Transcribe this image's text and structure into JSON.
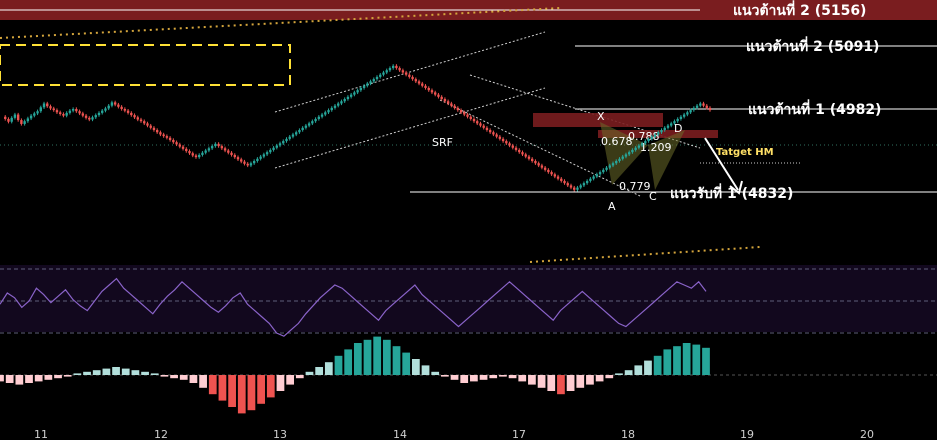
{
  "chart_data": {
    "type": "candlestick",
    "resistance_levels": [
      {
        "label": "แนวต้านที่ 2 (5156)",
        "value": 5156
      },
      {
        "label": "แนวต้านที่ 2 (5091)",
        "value": 5091
      },
      {
        "label": "แนวต้านที่ 1 (4982)",
        "value": 4982
      }
    ],
    "support_levels": [
      {
        "label": "แนวรับที่ 1 (4832)",
        "value": 4832
      }
    ],
    "annotations": {
      "channel": "SRF",
      "target": "Tatget HM",
      "pattern_points": [
        "X",
        "A",
        "C",
        "D"
      ],
      "ratios": [
        "0.678",
        "0.788",
        "1.209",
        "0.779"
      ]
    },
    "x_tick_labels": [
      "11",
      "12",
      "13",
      "14",
      "17",
      "18",
      "19",
      "20"
    ],
    "price_series": [
      4968,
      4964,
      4959,
      4966,
      4972,
      4962,
      4955,
      4960,
      4965,
      4970,
      4974,
      4978,
      4985,
      4992,
      4987,
      4983,
      4980,
      4976,
      4973,
      4970,
      4975,
      4979,
      4982,
      4978,
      4974,
      4970,
      4966,
      4963,
      4967,
      4971,
      4975,
      4979,
      4983,
      4988,
      4994,
      4990,
      4986,
      4982,
      4979,
      4975,
      4971,
      4967,
      4963,
      4960,
      4956,
      4952,
      4948,
      4944,
      4940,
      4936,
      4933,
      4930,
      4926,
      4922,
      4918,
      4914,
      4910,
      4906,
      4902,
      4898,
      4895,
      4899,
      4903,
      4907,
      4911,
      4915,
      4919,
      4915,
      4911,
      4907,
      4903,
      4899,
      4895,
      4891,
      4887,
      4883,
      4880,
      4884,
      4888,
      4892,
      4896,
      4900,
      4904,
      4908,
      4912,
      4916,
      4920,
      4924,
      4928,
      4932,
      4936,
      4940,
      4944,
      4948,
      4952,
      4956,
      4960,
      4964,
      4968,
      4972,
      4976,
      4980,
      4984,
      4988,
      4992,
      4996,
      5000,
      5004,
      5008,
      5012,
      5016,
      5020,
      5024,
      5028,
      5032,
      5036,
      5040,
      5044,
      5048,
      5052,
      5056,
      5060,
      5056,
      5052,
      5048,
      5044,
      5040,
      5036,
      5032,
      5028,
      5024,
      5020,
      5016,
      5012,
      5008,
      5004,
      5000,
      4996,
      4992,
      4988,
      4984,
      4980,
      4976,
      4972,
      4968,
      4964,
      4960,
      4956,
      4952,
      4948,
      4944,
      4940,
      4936,
      4932,
      4928,
      4924,
      4920,
      4916,
      4912,
      4908,
      4904,
      4900,
      4896,
      4892,
      4888,
      4884,
      4880,
      4876,
      4872,
      4868,
      4864,
      4860,
      4856,
      4852,
      4848,
      4844,
      4840,
      4836,
      4840,
      4844,
      4848,
      4852,
      4856,
      4860,
      4864,
      4868,
      4872,
      4876,
      4880,
      4884,
      4888,
      4892,
      4896,
      4900,
      4904,
      4908,
      4912,
      4916,
      4920,
      4924,
      4928,
      4932,
      4936,
      4940,
      4944,
      4948,
      4952,
      4956,
      4960,
      4964,
      4968,
      4972,
      4976,
      4980,
      4984,
      4988,
      4992,
      4988,
      4984,
      4980
    ],
    "rsi_series": [
      48,
      55,
      52,
      46,
      50,
      58,
      54,
      49,
      53,
      57,
      51,
      47,
      44,
      50,
      56,
      60,
      64,
      58,
      54,
      50,
      46,
      42,
      48,
      53,
      57,
      62,
      58,
      54,
      50,
      46,
      43,
      47,
      52,
      55,
      48,
      44,
      40,
      36,
      30,
      28,
      32,
      36,
      42,
      47,
      52,
      56,
      60,
      58,
      54,
      50,
      46,
      42,
      38,
      44,
      48,
      52,
      56,
      60,
      54,
      50,
      46,
      42,
      38,
      34,
      38,
      42,
      46,
      50,
      54,
      58,
      62,
      58,
      54,
      50,
      46,
      42,
      38,
      44,
      48,
      52,
      56,
      52,
      48,
      44,
      40,
      36,
      34,
      38,
      42,
      46,
      50,
      54,
      58,
      62,
      60,
      58,
      62,
      56
    ],
    "macd_hist": [
      -4,
      -5,
      -6,
      -5,
      -4,
      -3,
      -2,
      -1,
      1,
      2,
      3,
      4,
      5,
      4,
      3,
      2,
      1,
      -1,
      -2,
      -3,
      -5,
      -8,
      -12,
      -16,
      -20,
      -24,
      -22,
      -18,
      -14,
      -10,
      -6,
      -2,
      2,
      5,
      8,
      12,
      16,
      20,
      22,
      24,
      22,
      18,
      14,
      10,
      6,
      2,
      -1,
      -3,
      -5,
      -4,
      -3,
      -2,
      -1,
      -2,
      -4,
      -6,
      -8,
      -10,
      -12,
      -10,
      -8,
      -6,
      -4,
      -2,
      1,
      3,
      6,
      9,
      12,
      16,
      18,
      20,
      19,
      17
    ],
    "ohlc_note": "candlestick series estimated from visual"
  }
}
